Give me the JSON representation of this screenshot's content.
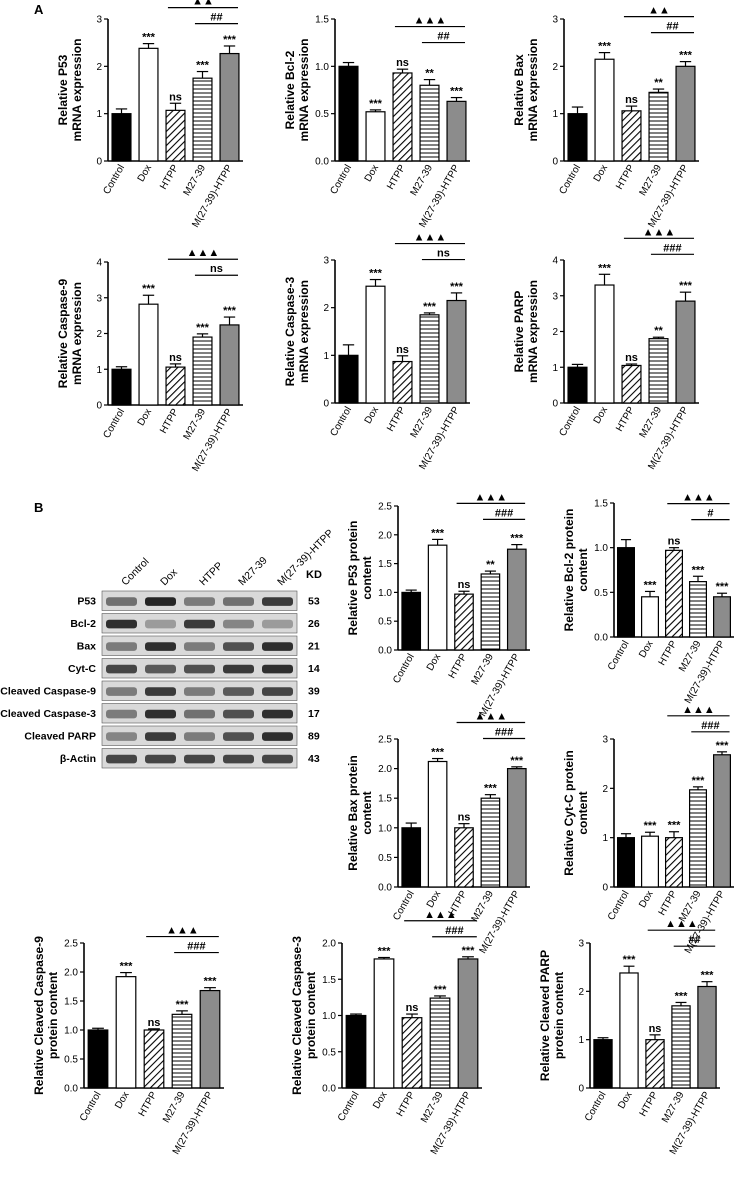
{
  "panel_labels": {
    "a": "A",
    "b": "B"
  },
  "chart_data": [
    {
      "type": "bar",
      "id": "c1",
      "categories": [
        "Control",
        "Dox",
        "HTPP",
        "M27-39",
        "M(27-39)-HTPP"
      ],
      "values": [
        1.0,
        2.38,
        1.07,
        1.75,
        2.27
      ],
      "errors": [
        0.1,
        0.1,
        0.15,
        0.14,
        0.16
      ],
      "ylabel": [
        "Relative P53",
        "mRNA expression"
      ],
      "ylim": [
        0,
        3
      ],
      "yticks": [
        "0",
        "1",
        "2",
        "3"
      ],
      "significance": [
        "",
        "***",
        "ns",
        "***",
        "***"
      ],
      "brackets": [
        {
          "from": 2,
          "to": 4,
          "label": "▲▲"
        },
        {
          "from": 3,
          "to": 4,
          "label": "##"
        }
      ]
    },
    {
      "type": "bar",
      "id": "c2",
      "categories": [
        "Control",
        "Dox",
        "HTPP",
        "M27-39",
        "M(27-39)-HTPP"
      ],
      "values": [
        1.0,
        0.52,
        0.93,
        0.8,
        0.63
      ],
      "errors": [
        0.04,
        0.02,
        0.04,
        0.06,
        0.04
      ],
      "ylabel": [
        "Relative Bcl-2",
        "mRNA expression"
      ],
      "ylim": [
        0,
        1.5
      ],
      "yticks": [
        "0.0",
        "0.5",
        "1.0",
        "1.5"
      ],
      "significance": [
        "",
        "***",
        "ns",
        "**",
        "***"
      ],
      "brackets": [
        {
          "from": 2,
          "to": 4,
          "label": "▲▲▲"
        },
        {
          "from": 3,
          "to": 4,
          "label": "##"
        }
      ]
    },
    {
      "type": "bar",
      "id": "c3",
      "categories": [
        "Control",
        "Dox",
        "HTPP",
        "M27-39",
        "M(27-39)-HTPP"
      ],
      "values": [
        1.0,
        2.15,
        1.06,
        1.45,
        2.0
      ],
      "errors": [
        0.14,
        0.14,
        0.1,
        0.07,
        0.1
      ],
      "ylabel": [
        "Relative Bax",
        "mRNA expression"
      ],
      "ylim": [
        0,
        3
      ],
      "yticks": [
        "0",
        "1",
        "2",
        "3"
      ],
      "significance": [
        "",
        "***",
        "ns",
        "**",
        "***"
      ],
      "brackets": [
        {
          "from": 2,
          "to": 4,
          "label": "▲▲"
        },
        {
          "from": 3,
          "to": 4,
          "label": "##"
        }
      ]
    },
    {
      "type": "bar",
      "id": "c4",
      "categories": [
        "Control",
        "Dox",
        "HTPP",
        "M27-39",
        "M(27-39)-HTPP"
      ],
      "values": [
        1.0,
        2.82,
        1.06,
        1.9,
        2.24
      ],
      "errors": [
        0.07,
        0.25,
        0.09,
        0.09,
        0.22
      ],
      "ylabel": [
        "Relative Caspase-9",
        "mRNA expression"
      ],
      "ylim": [
        0,
        4
      ],
      "yticks": [
        "0",
        "1",
        "2",
        "3",
        "4"
      ],
      "significance": [
        "",
        "***",
        "ns",
        "***",
        "***"
      ],
      "brackets": [
        {
          "from": 2,
          "to": 4,
          "label": "▲▲▲"
        },
        {
          "from": 3,
          "to": 4,
          "label": "ns"
        }
      ]
    },
    {
      "type": "bar",
      "id": "c5",
      "categories": [
        "Control",
        "Dox",
        "HTPP",
        "M27-39",
        "M(27-39)-HTPP"
      ],
      "values": [
        1.0,
        2.45,
        0.87,
        1.85,
        2.15
      ],
      "errors": [
        0.22,
        0.14,
        0.12,
        0.04,
        0.16
      ],
      "ylabel": [
        "Relative Caspase-3",
        "mRNA expression"
      ],
      "ylim": [
        0,
        3
      ],
      "yticks": [
        "0",
        "1",
        "2",
        "3"
      ],
      "significance": [
        "",
        "***",
        "ns",
        "***",
        "***"
      ],
      "brackets": [
        {
          "from": 2,
          "to": 4,
          "label": "▲▲▲"
        },
        {
          "from": 3,
          "to": 4,
          "label": "ns"
        }
      ]
    },
    {
      "type": "bar",
      "id": "c6",
      "categories": [
        "Control",
        "Dox",
        "HTPP",
        "M27-39",
        "M(27-39)-HTPP"
      ],
      "values": [
        1.0,
        3.3,
        1.05,
        1.8,
        2.85
      ],
      "errors": [
        0.08,
        0.3,
        0.04,
        0.04,
        0.25
      ],
      "ylabel": [
        "Relative PARP",
        "mRNA expression"
      ],
      "ylim": [
        0,
        4
      ],
      "yticks": [
        "0",
        "1",
        "2",
        "3",
        "4"
      ],
      "significance": [
        "",
        "***",
        "ns",
        "**",
        "***"
      ],
      "brackets": [
        {
          "from": 2,
          "to": 4,
          "label": "▲▲▲"
        },
        {
          "from": 3,
          "to": 4,
          "label": "###"
        }
      ]
    },
    {
      "type": "bar",
      "id": "c7",
      "categories": [
        "Control",
        "Dox",
        "HTPP",
        "M27-39",
        "M(27-39)-HTPP"
      ],
      "values": [
        1.0,
        1.82,
        0.97,
        1.32,
        1.75
      ],
      "errors": [
        0.04,
        0.1,
        0.05,
        0.05,
        0.08
      ],
      "ylabel": [
        "Relative P53 protein",
        "content"
      ],
      "ylim": [
        0,
        2.5
      ],
      "yticks": [
        "0.0",
        "0.5",
        "1.0",
        "1.5",
        "2.0",
        "2.5"
      ],
      "significance": [
        "",
        "***",
        "ns",
        "**",
        "***"
      ],
      "brackets": [
        {
          "from": 2,
          "to": 4,
          "label": "▲▲▲"
        },
        {
          "from": 3,
          "to": 4,
          "label": "###"
        }
      ]
    },
    {
      "type": "bar",
      "id": "c8",
      "categories": [
        "Control",
        "Dox",
        "HTPP",
        "M27-39",
        "M(27-39)-HTPP"
      ],
      "values": [
        1.0,
        0.45,
        0.97,
        0.62,
        0.45
      ],
      "errors": [
        0.09,
        0.06,
        0.03,
        0.06,
        0.04
      ],
      "ylabel": [
        "Relative Bcl-2 protein",
        "content"
      ],
      "ylim": [
        0,
        1.5
      ],
      "yticks": [
        "0.0",
        "0.5",
        "1.0",
        "1.5"
      ],
      "significance": [
        "",
        "***",
        "ns",
        "***",
        "***"
      ],
      "brackets": [
        {
          "from": 2,
          "to": 4,
          "label": "▲▲▲"
        },
        {
          "from": 3,
          "to": 4,
          "label": "#"
        }
      ]
    },
    {
      "type": "bar",
      "id": "c9",
      "categories": [
        "Control",
        "Dox",
        "HTPP",
        "M27-39",
        "M(27-39)-HTPP"
      ],
      "values": [
        1.0,
        2.12,
        1.0,
        1.5,
        2.0
      ],
      "errors": [
        0.08,
        0.05,
        0.07,
        0.06,
        0.03
      ],
      "ylabel": [
        "Relative Bax protein",
        "content"
      ],
      "ylim": [
        0,
        2.5
      ],
      "yticks": [
        "0.0",
        "0.5",
        "1.0",
        "1.5",
        "2.0",
        "2.5"
      ],
      "significance": [
        "",
        "***",
        "ns",
        "***",
        "***"
      ],
      "brackets": [
        {
          "from": 2,
          "to": 4,
          "label": "▲▲▲"
        },
        {
          "from": 3,
          "to": 4,
          "label": "###"
        }
      ]
    },
    {
      "type": "bar",
      "id": "c10",
      "categories": [
        "Control",
        "Dox",
        "HTPP",
        "M27-39",
        "M(27-39)-HTPP"
      ],
      "values": [
        1.0,
        1.03,
        1.0,
        1.97,
        2.68
      ],
      "errors": [
        0.08,
        0.08,
        0.12,
        0.06,
        0.06
      ],
      "ylabel": [
        "Relative Cyt-C protein",
        "content"
      ],
      "ylim": [
        0,
        3
      ],
      "yticks": [
        "0",
        "1",
        "2",
        "3"
      ],
      "significance": [
        "",
        "***",
        "***",
        "***",
        "***"
      ],
      "brackets": [
        {
          "from": 2,
          "to": 4,
          "label": "▲▲▲"
        },
        {
          "from": 3,
          "to": 4,
          "label": "###"
        }
      ]
    },
    {
      "type": "bar",
      "id": "c11",
      "categories": [
        "Control",
        "Dox",
        "HTPP",
        "M27-39",
        "M(27-39)-HTPP"
      ],
      "values": [
        1.0,
        1.92,
        1.0,
        1.27,
        1.68
      ],
      "errors": [
        0.03,
        0.07,
        0.02,
        0.06,
        0.05
      ],
      "ylabel": [
        "Relative Cleaved Caspase-9",
        "protein content"
      ],
      "ylim": [
        0,
        2.5
      ],
      "yticks": [
        "0.0",
        "0.5",
        "1.0",
        "1.5",
        "2.0",
        "2.5"
      ],
      "significance": [
        "",
        "***",
        "ns",
        "***",
        "***"
      ],
      "brackets": [
        {
          "from": 2,
          "to": 4,
          "label": "▲▲▲"
        },
        {
          "from": 3,
          "to": 4,
          "label": "###"
        }
      ]
    },
    {
      "type": "bar",
      "id": "c12",
      "categories": [
        "Control",
        "Dox",
        "HTPP",
        "M27-39",
        "M(27-39)-HTPP"
      ],
      "values": [
        1.0,
        1.78,
        0.97,
        1.24,
        1.78
      ],
      "errors": [
        0.02,
        0.02,
        0.05,
        0.03,
        0.03
      ],
      "ylabel": [
        "Relative Cleaved Caspase-3",
        "protein content"
      ],
      "ylim": [
        0,
        2.0
      ],
      "yticks": [
        "0.0",
        "0.5",
        "1.0",
        "1.5",
        "2.0"
      ],
      "significance": [
        "",
        "***",
        "ns",
        "***",
        "***"
      ],
      "brackets": [
        {
          "from": 2,
          "to": 4,
          "label": "▲▲▲"
        },
        {
          "from": 3,
          "to": 4,
          "label": "###"
        }
      ]
    },
    {
      "type": "bar",
      "id": "c13",
      "categories": [
        "Control",
        "Dox",
        "HTPP",
        "M27-39",
        "M(27-39)-HTPP"
      ],
      "values": [
        1.0,
        2.38,
        1.0,
        1.7,
        2.1
      ],
      "errors": [
        0.04,
        0.14,
        0.1,
        0.07,
        0.1
      ],
      "ylabel": [
        "Relative Cleaved PARP",
        "protein content"
      ],
      "ylim": [
        0,
        3
      ],
      "yticks": [
        "0",
        "1",
        "2",
        "3"
      ],
      "significance": [
        "",
        "***",
        "ns",
        "***",
        "***"
      ],
      "brackets": [
        {
          "from": 2,
          "to": 4,
          "label": "▲▲▲"
        },
        {
          "from": 3,
          "to": 4,
          "label": "##"
        }
      ]
    }
  ],
  "western_blot": {
    "lanes": [
      "Control",
      "Dox",
      "HTPP",
      "M27-39",
      "M(27-39)-HTPP"
    ],
    "kd_header": "KD",
    "rows": [
      {
        "protein": "P53",
        "kd": "53",
        "intensity": [
          0.55,
          0.9,
          0.5,
          0.55,
          0.8
        ]
      },
      {
        "protein": "Bcl-2",
        "kd": "26",
        "intensity": [
          0.85,
          0.35,
          0.8,
          0.45,
          0.35
        ]
      },
      {
        "protein": "Bax",
        "kd": "21",
        "intensity": [
          0.5,
          0.85,
          0.5,
          0.7,
          0.85
        ]
      },
      {
        "protein": "Cyt-C",
        "kd": "14",
        "intensity": [
          0.75,
          0.65,
          0.7,
          0.8,
          0.85
        ]
      },
      {
        "protein": "Cleaved Caspase-9",
        "kd": "39",
        "intensity": [
          0.5,
          0.8,
          0.5,
          0.65,
          0.75
        ]
      },
      {
        "protein": "Cleaved Caspase-3",
        "kd": "17",
        "intensity": [
          0.5,
          0.85,
          0.55,
          0.7,
          0.85
        ]
      },
      {
        "protein": "Cleaved PARP",
        "kd": "89",
        "intensity": [
          0.45,
          0.8,
          0.5,
          0.7,
          0.85
        ]
      },
      {
        "protein": "β-Actin",
        "kd": "43",
        "intensity": [
          0.75,
          0.75,
          0.75,
          0.75,
          0.75
        ]
      }
    ]
  }
}
